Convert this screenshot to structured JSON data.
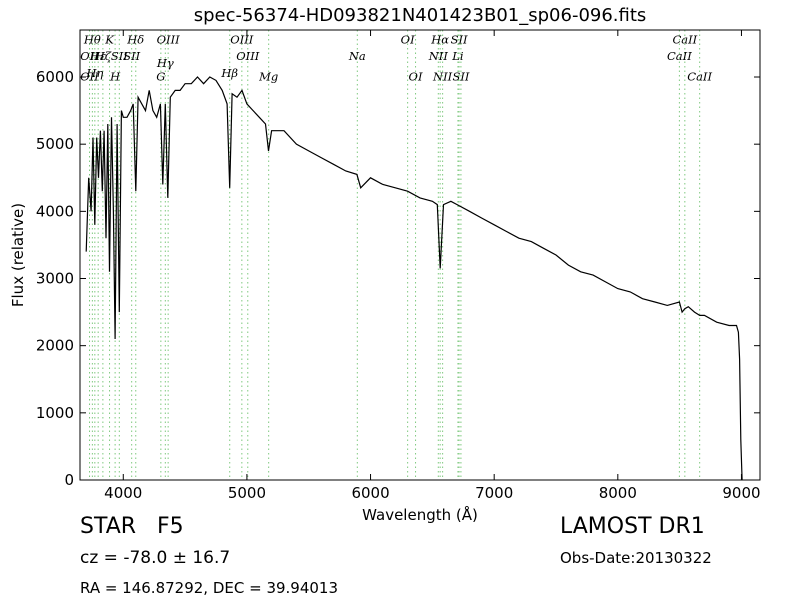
{
  "chart_data": {
    "type": "line",
    "title": "spec-56374-HD093821N401423B01_sp06-096.fits",
    "xlabel": "Wavelength (Å)",
    "ylabel": "Flux (relative)",
    "xlim": [
      3650,
      9150
    ],
    "ylim": [
      0,
      6700
    ],
    "xticks": [
      4000,
      5000,
      6000,
      7000,
      8000,
      9000
    ],
    "yticks": [
      0,
      1000,
      2000,
      3000,
      4000,
      5000,
      6000
    ],
    "grid": false,
    "series": [
      {
        "color": "#000000",
        "x": [
          3700,
          3720,
          3740,
          3755,
          3770,
          3785,
          3800,
          3815,
          3830,
          3845,
          3860,
          3875,
          3889,
          3905,
          3920,
          3934,
          3950,
          3968,
          3985,
          4000,
          4030,
          4060,
          4080,
          4101,
          4120,
          4150,
          4180,
          4210,
          4240,
          4270,
          4300,
          4320,
          4340,
          4360,
          4380,
          4420,
          4460,
          4500,
          4550,
          4600,
          4650,
          4700,
          4750,
          4800,
          4840,
          4861,
          4880,
          4920,
          4960,
          5000,
          5050,
          5100,
          5150,
          5175,
          5200,
          5250,
          5300,
          5400,
          5500,
          5600,
          5700,
          5800,
          5890,
          5920,
          6000,
          6100,
          6200,
          6300,
          6400,
          6500,
          6540,
          6563,
          6590,
          6650,
          6700,
          6800,
          6900,
          7000,
          7100,
          7200,
          7300,
          7400,
          7500,
          7600,
          7700,
          7800,
          7900,
          8000,
          8100,
          8200,
          8300,
          8400,
          8498,
          8520,
          8542,
          8570,
          8620,
          8662,
          8700,
          8800,
          8900,
          8960,
          8975,
          8985,
          8995,
          9005
        ],
        "y": [
          3400,
          4500,
          4000,
          5100,
          3800,
          5100,
          4500,
          5200,
          4300,
          5200,
          3600,
          5300,
          3100,
          5400,
          4000,
          2100,
          5300,
          2500,
          5500,
          5400,
          5400,
          5500,
          5600,
          4300,
          5700,
          5600,
          5500,
          5800,
          5500,
          5400,
          5600,
          4400,
          5600,
          4200,
          5700,
          5800,
          5800,
          5900,
          5900,
          6000,
          5900,
          6000,
          5950,
          5800,
          5600,
          4350,
          5750,
          5700,
          5800,
          5600,
          5500,
          5400,
          5300,
          4900,
          5200,
          5200,
          5200,
          5000,
          4900,
          4800,
          4700,
          4600,
          4550,
          4350,
          4500,
          4400,
          4350,
          4300,
          4200,
          4150,
          4100,
          3150,
          4100,
          4150,
          4100,
          4000,
          3900,
          3800,
          3700,
          3600,
          3550,
          3450,
          3350,
          3200,
          3100,
          3050,
          2950,
          2850,
          2800,
          2700,
          2650,
          2600,
          2650,
          2500,
          2550,
          2580,
          2500,
          2450,
          2450,
          2350,
          2300,
          2300,
          2200,
          1800,
          600,
          0
        ]
      }
    ],
    "lines": [
      {
        "wave": 3727,
        "label": "OII",
        "label_flux": 6250
      },
      {
        "wave": 3727,
        "label": "OII",
        "label_flux": 5950
      },
      {
        "wave": 3750,
        "label": "Hθ",
        "label_flux": 6500
      },
      {
        "wave": 3770,
        "label": "Hη",
        "label_flux": 6000
      },
      {
        "wave": 3797,
        "label": "Hε",
        "label_flux": 6250
      },
      {
        "wave": 3835,
        "label": "Hζ",
        "label_flux": 6250
      },
      {
        "wave": 3889,
        "label": "K",
        "label_flux": 6500
      },
      {
        "wave": 3934,
        "label": "H",
        "label_flux": 5950
      },
      {
        "wave": 3968,
        "label": "SII",
        "label_flux": 6250
      },
      {
        "wave": 4068,
        "label": "SII",
        "label_flux": 6250
      },
      {
        "wave": 4101,
        "label": "Hδ",
        "label_flux": 6500
      },
      {
        "wave": 4304,
        "label": "G",
        "label_flux": 5950
      },
      {
        "wave": 4340,
        "label": "Hγ",
        "label_flux": 6150
      },
      {
        "wave": 4363,
        "label": "OIII",
        "label_flux": 6500
      },
      {
        "wave": 4861,
        "label": "Hβ",
        "label_flux": 6000
      },
      {
        "wave": 4959,
        "label": "OIII",
        "label_flux": 6500
      },
      {
        "wave": 5007,
        "label": "OIII",
        "label_flux": 6250
      },
      {
        "wave": 5176,
        "label": "Mg",
        "label_flux": 5950
      },
      {
        "wave": 5893,
        "label": "Na",
        "label_flux": 6250
      },
      {
        "wave": 6300,
        "label": "OI",
        "label_flux": 6500
      },
      {
        "wave": 6364,
        "label": "OI",
        "label_flux": 5950
      },
      {
        "wave": 6548,
        "label": "NII",
        "label_flux": 6250
      },
      {
        "wave": 6563,
        "label": "Hα",
        "label_flux": 6500
      },
      {
        "wave": 6583,
        "label": "NII",
        "label_flux": 5950
      },
      {
        "wave": 6707,
        "label": "Li",
        "label_flux": 6250
      },
      {
        "wave": 6716,
        "label": "SII",
        "label_flux": 6500
      },
      {
        "wave": 6731,
        "label": "SII",
        "label_flux": 5950
      },
      {
        "wave": 8498,
        "label": "CaII",
        "label_flux": 6250
      },
      {
        "wave": 8542,
        "label": "CaII",
        "label_flux": 6500
      },
      {
        "wave": 8662,
        "label": "CaII",
        "label_flux": 5950
      }
    ]
  },
  "info": {
    "object_class": "STAR   F5",
    "redshift": "cz = -78.0 ± 16.7",
    "coords": "RA = 146.87292, DEC = 39.94013",
    "survey": "LAMOST DR1",
    "obs_date": "Obs-Date:20130322"
  },
  "colors": {
    "spectrum": "#000000",
    "line_marker": "#7fc97f",
    "axes": "#000000"
  }
}
